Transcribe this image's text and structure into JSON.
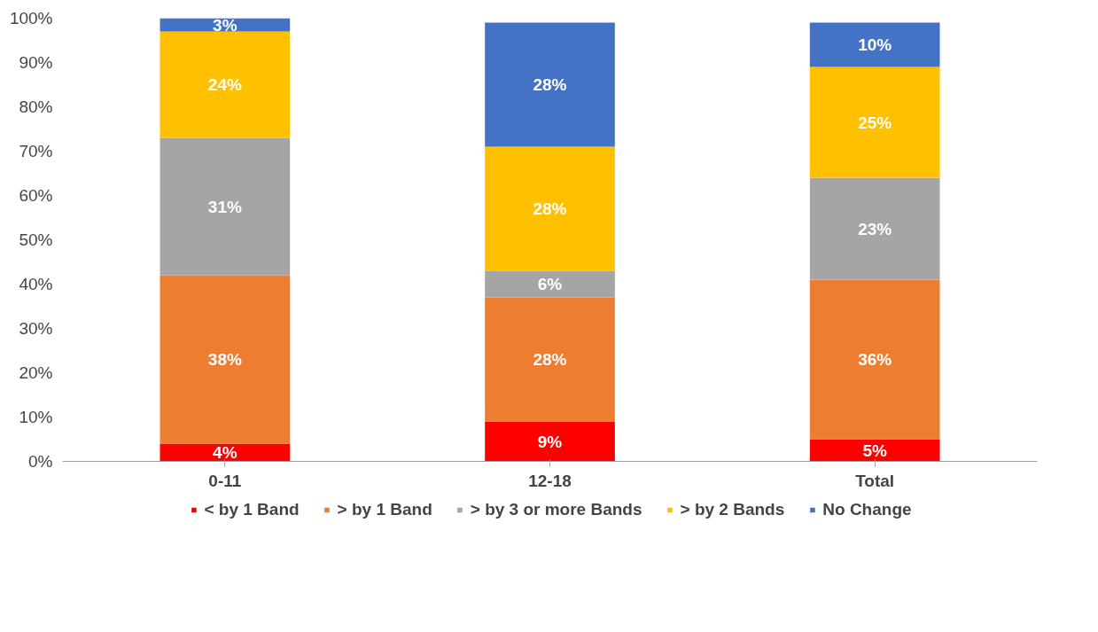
{
  "chart_data": {
    "type": "bar",
    "stacked": true,
    "categories": [
      "0-11",
      "12-18",
      "Total"
    ],
    "series": [
      {
        "name": "< by 1 Band",
        "color": "#ff0000",
        "values": [
          4,
          9,
          5
        ],
        "value_labels": [
          "4%",
          "9%",
          "5%"
        ]
      },
      {
        "name": "> by 1 Band",
        "color": "#ed7d31",
        "values": [
          38,
          28,
          36
        ],
        "value_labels": [
          "38%",
          "28%",
          "36%"
        ]
      },
      {
        "name": "> by 3 or more Bands",
        "color": "#a5a5a5",
        "values": [
          31,
          6,
          23
        ],
        "value_labels": [
          "31%",
          "6%",
          "23%"
        ]
      },
      {
        "name": "> by 2 Bands",
        "color": "#ffc000",
        "values": [
          24,
          28,
          25
        ],
        "value_labels": [
          "24%",
          "28%",
          "25%"
        ]
      },
      {
        "name": "No Change",
        "color": "#4472c4",
        "values": [
          3,
          28,
          10
        ],
        "value_labels": [
          "3%",
          "28%",
          "10%"
        ]
      }
    ],
    "ylim": [
      0,
      100
    ],
    "yticks": [
      {
        "value": 0,
        "label": "0%"
      },
      {
        "value": 10,
        "label": "10%"
      },
      {
        "value": 20,
        "label": "20%"
      },
      {
        "value": 30,
        "label": "30%"
      },
      {
        "value": 40,
        "label": "40%"
      },
      {
        "value": 50,
        "label": "50%"
      },
      {
        "value": 60,
        "label": "60%"
      },
      {
        "value": 70,
        "label": "70%"
      },
      {
        "value": 80,
        "label": "80%"
      },
      {
        "value": 90,
        "label": "90%"
      },
      {
        "value": 100,
        "label": "100%"
      }
    ],
    "legend": "bottom"
  }
}
